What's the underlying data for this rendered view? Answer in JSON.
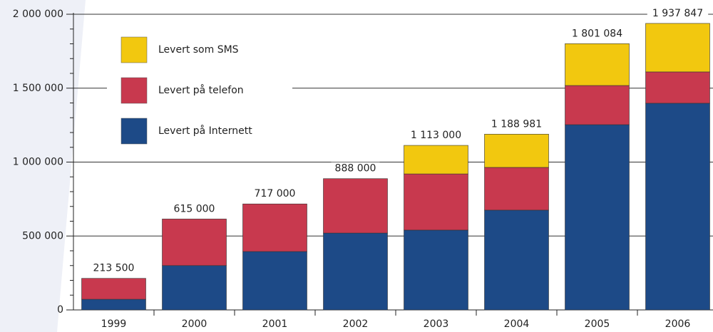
{
  "chart_data": {
    "type": "stacked-bar",
    "categories": [
      "1999",
      "2000",
      "2001",
      "2002",
      "2003",
      "2004",
      "2005",
      "2006"
    ],
    "series": [
      {
        "name": "Levert på Internett",
        "color": "#1d4a87",
        "values": [
          72000,
          300000,
          395000,
          520000,
          540000,
          675000,
          1253000,
          1398000
        ]
      },
      {
        "name": "Levert på telefon",
        "color": "#c8394e",
        "values": [
          141500,
          315000,
          322000,
          368000,
          380000,
          289000,
          265000,
          212000
        ]
      },
      {
        "name": "Levert som SMS",
        "color": "#f2c80f",
        "values": [
          0,
          0,
          0,
          0,
          193000,
          225000,
          283000,
          328000
        ]
      }
    ],
    "total_labels": [
      "213 500",
      "615 000",
      "717 000",
      "888 000",
      "1 113 000",
      "1 188 981",
      "1 801 084",
      "1 937 847"
    ],
    "ylim": [
      0,
      2000000
    ],
    "yticks": [
      {
        "value": 0,
        "label": "0"
      },
      {
        "value": 500000,
        "label": "500 000"
      },
      {
        "value": 1000000,
        "label": "1 000 000"
      },
      {
        "value": 1500000,
        "label": "1 500 000"
      },
      {
        "value": 2000000,
        "label": "2 000 000"
      }
    ],
    "grid": true
  }
}
